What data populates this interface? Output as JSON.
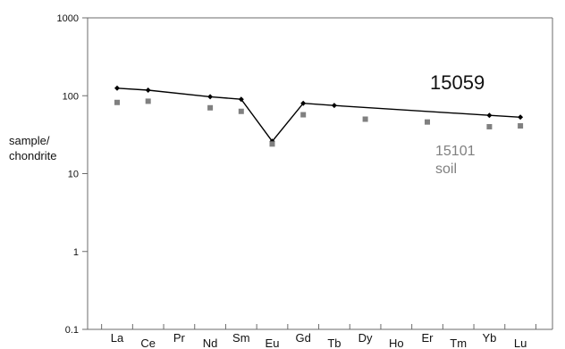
{
  "chart_data": {
    "type": "line",
    "title": "",
    "subtitle": "",
    "xlabel": "",
    "ylabel_lines": [
      "sample/",
      "chondrite"
    ],
    "categories": [
      "La",
      "Ce",
      "Pr",
      "Nd",
      "Sm",
      "Eu",
      "Gd",
      "Tb",
      "Dy",
      "Ho",
      "Er",
      "Tm",
      "Yb",
      "Lu"
    ],
    "y_scale": "log",
    "ylim": [
      0.1,
      1000
    ],
    "yticks": [
      "0.1",
      "1",
      "10",
      "100",
      "1000"
    ],
    "grid": false,
    "legend": "none",
    "series": [
      {
        "name": "15059",
        "type": "line",
        "marker": "diamond",
        "color": "#000000",
        "values": [
          125,
          118,
          null,
          97,
          90,
          26,
          80,
          75,
          null,
          null,
          null,
          null,
          56,
          53
        ]
      },
      {
        "name": "15101 soil",
        "type": "scatter",
        "marker": "square",
        "color": "#808080",
        "values": [
          82,
          85,
          null,
          70,
          63,
          24,
          57,
          null,
          50,
          null,
          46,
          null,
          40,
          41
        ]
      }
    ],
    "annotations": [
      {
        "text": "15059",
        "color": "#000000"
      },
      {
        "lines": [
          "15101",
          "soil"
        ],
        "color": "#808080"
      }
    ]
  }
}
